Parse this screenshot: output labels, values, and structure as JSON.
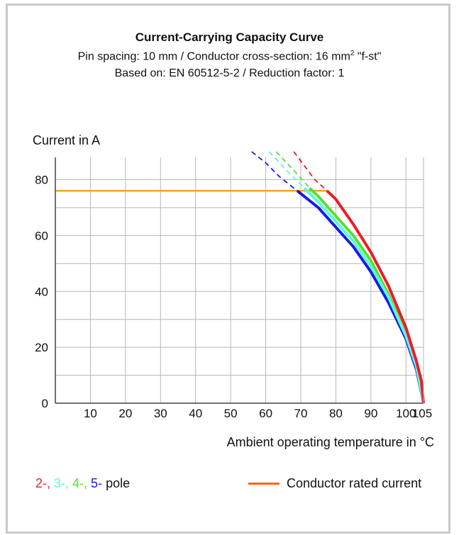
{
  "header": {
    "title": "Current-Carrying Capacity Curve",
    "subtitle_main": "Pin spacing: 10 mm / Conductor cross-section: 16 mm",
    "subtitle_sup": "2",
    "subtitle_tail": " \"f-st\"",
    "subtitle2": "Based on: EN 60512-5-2 / Reduction factor: 1"
  },
  "chart_data": {
    "type": "line",
    "title": "Current-Carrying Capacity Curve",
    "xlabel": "Ambient operating temperature in °C",
    "ylabel": "Current in A",
    "xlim": [
      0,
      105
    ],
    "ylim": [
      0,
      88
    ],
    "grid": true,
    "x_ticks": [
      10,
      20,
      30,
      40,
      50,
      60,
      70,
      80,
      90,
      100,
      105
    ],
    "x_tick_labels": [
      "10",
      "20",
      "30",
      "40",
      "50",
      "60",
      "70",
      "80",
      "90",
      "100",
      "105"
    ],
    "y_ticks": [
      0,
      20,
      40,
      60,
      80
    ],
    "y_tick_labels": [
      "0",
      "20",
      "40",
      "60",
      "80"
    ],
    "colors": {
      "pole2": "#ee1c25",
      "pole3": "#5ff5e6",
      "pole4": "#55e030",
      "pole5": "#1a1ae0",
      "rated": "#f5a623"
    },
    "series": [
      {
        "name": "2-",
        "color": "#ee1c25",
        "dashed": [
          [
            68,
            90
          ],
          [
            71,
            85
          ],
          [
            74,
            80
          ],
          [
            77.5,
            76
          ]
        ],
        "values": [
          [
            77.5,
            76
          ],
          [
            80,
            73
          ],
          [
            85,
            64
          ],
          [
            90,
            54
          ],
          [
            95,
            42
          ],
          [
            100,
            27
          ],
          [
            103,
            15
          ],
          [
            104.4,
            8
          ],
          [
            105,
            0
          ]
        ]
      },
      {
        "name": "3-",
        "color": "#5ff5e6",
        "dashed": [
          [
            61,
            90
          ],
          [
            64,
            86
          ],
          [
            67,
            82
          ],
          [
            71,
            77
          ]
        ],
        "values": [
          [
            71,
            77
          ],
          [
            75,
            72
          ],
          [
            80,
            65
          ],
          [
            85,
            58
          ],
          [
            90,
            49
          ],
          [
            95,
            38
          ],
          [
            100,
            24
          ],
          [
            103,
            13
          ],
          [
            105,
            0
          ]
        ]
      },
      {
        "name": "4-",
        "color": "#55e030",
        "dashed": [
          [
            63,
            90
          ],
          [
            66,
            86
          ],
          [
            69,
            82
          ],
          [
            72.5,
            77
          ]
        ],
        "values": [
          [
            72.5,
            77
          ],
          [
            75,
            74
          ],
          [
            80,
            67
          ],
          [
            85,
            60
          ],
          [
            90,
            51
          ],
          [
            95,
            39
          ],
          [
            100,
            25
          ],
          [
            103,
            14
          ],
          [
            105,
            0
          ]
        ]
      },
      {
        "name": "5-",
        "color": "#1a1ae0",
        "dashed": [
          [
            56,
            90
          ],
          [
            60,
            86
          ],
          [
            64,
            81
          ],
          [
            69,
            76
          ]
        ],
        "values": [
          [
            69,
            76
          ],
          [
            75,
            70
          ],
          [
            80,
            63
          ],
          [
            85,
            56
          ],
          [
            90,
            47
          ],
          [
            95,
            36
          ],
          [
            100,
            23
          ],
          [
            103,
            12
          ],
          [
            105,
            0
          ]
        ]
      },
      {
        "name": "Conductor rated current",
        "color": "#f5a623",
        "values": [
          [
            0,
            76
          ],
          [
            77.5,
            76
          ]
        ]
      }
    ]
  },
  "legend": {
    "poles": [
      {
        "text": "2-,",
        "color": "#ee1c25"
      },
      {
        "text": " 3-,",
        "color": "#5ff5e6"
      },
      {
        "text": " 4-,",
        "color": "#55e030"
      },
      {
        "text": " 5-",
        "color": "#1a1ae0"
      },
      {
        "text": " pole",
        "color": "#111111"
      }
    ],
    "rated_label": "Conductor rated current",
    "rated_color": "#f26522"
  }
}
